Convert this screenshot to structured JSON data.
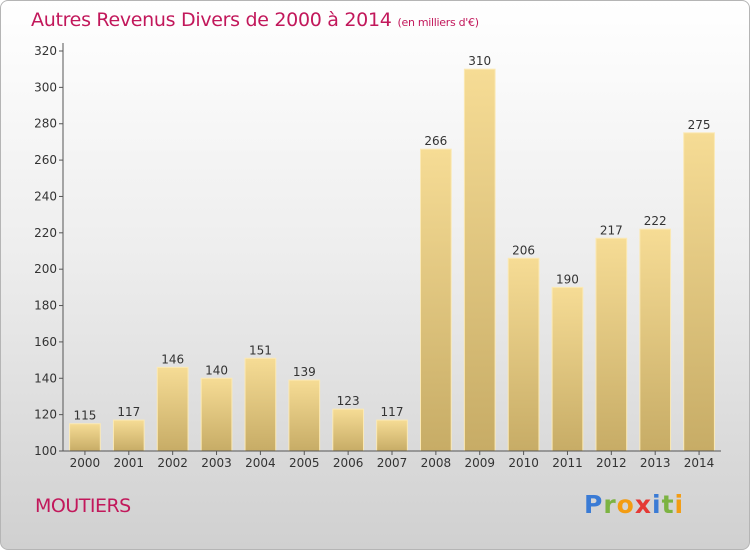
{
  "header": {
    "title": "Autres Revenus Divers de 2000 à 2014",
    "unit": "(en milliers d'€)"
  },
  "footer": {
    "place": "MOUTIERS",
    "brand": "Proxiti",
    "brand_colors": [
      "#3a7bd5",
      "#7cb342",
      "#f39c12",
      "#e53935",
      "#3a7bd5",
      "#7cb342",
      "#f39c12"
    ]
  },
  "chart_data": {
    "type": "bar",
    "title": "Autres Revenus Divers de 2000 à 2014",
    "xlabel": "",
    "ylabel": "",
    "categories": [
      "2000",
      "2001",
      "2002",
      "2003",
      "2004",
      "2005",
      "2006",
      "2007",
      "2008",
      "2009",
      "2010",
      "2011",
      "2012",
      "2013",
      "2014"
    ],
    "values": [
      115,
      117,
      146,
      140,
      151,
      139,
      123,
      117,
      266,
      310,
      206,
      190,
      217,
      222,
      275
    ],
    "ylim": [
      100,
      320
    ],
    "yticks": [
      100,
      120,
      140,
      160,
      180,
      200,
      220,
      240,
      260,
      280,
      300,
      320
    ],
    "grid": false,
    "legend": "none",
    "colors": {
      "bar_light": "#f6dc95",
      "bar_dark": "#c7ac66",
      "axis": "#555555",
      "text": "#333333"
    }
  }
}
